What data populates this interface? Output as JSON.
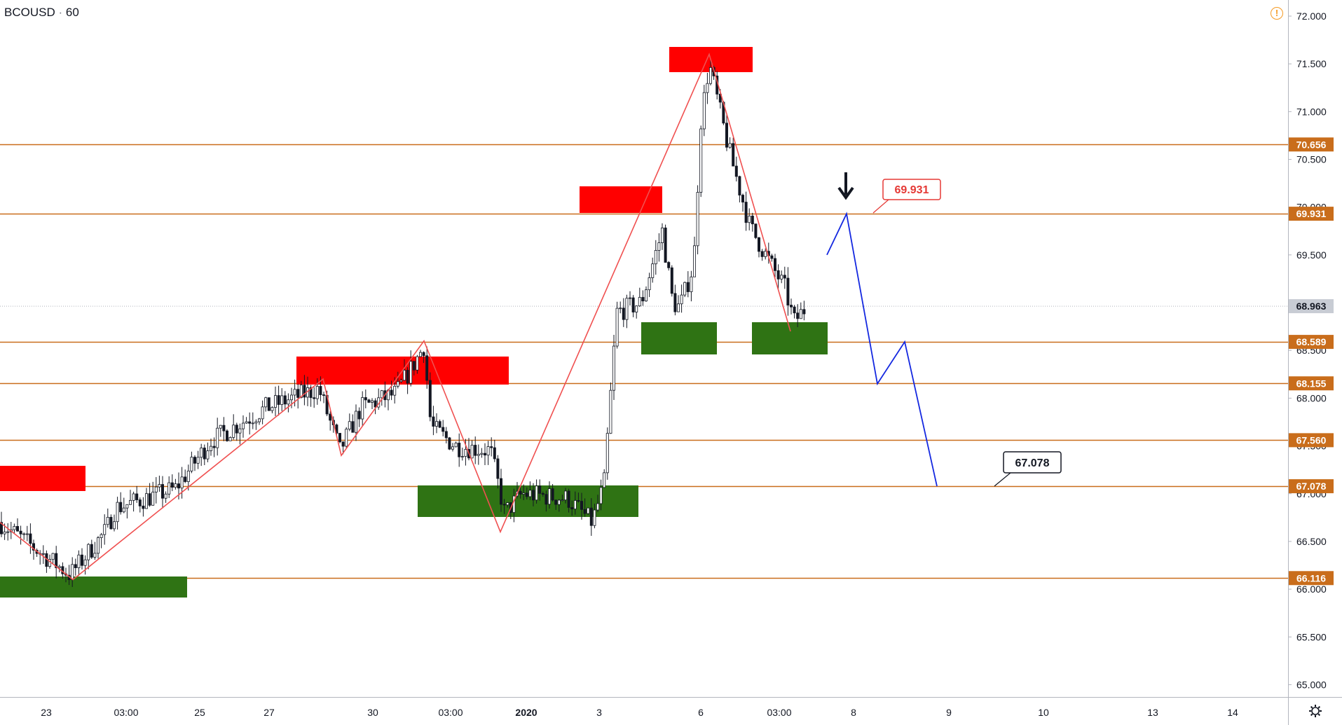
{
  "header": {
    "symbol": "BCOUSD",
    "separator": "·",
    "interval": "60",
    "alert_icon": "exclamation-circle-icon"
  },
  "colors": {
    "level_line": "#c96d1b",
    "level_label_bg": "#c96d1b",
    "supply_zone": "#ff0000",
    "demand_zone": "#2f7314",
    "candle_up": "#ffffff",
    "candle_down": "#131722",
    "wave_line": "#f05050",
    "projection_line": "#1428e0",
    "target_callout_red": "#e53935",
    "target_callout_black": "#131722",
    "price_tag_bg": "#c8ccd4"
  },
  "chart_data": {
    "type": "candlestick",
    "symbol": "BCOUSD",
    "interval": "60",
    "y_axis": {
      "range": [
        64.9,
        72.1
      ],
      "ticks": [
        "72.000",
        "71.500",
        "71.000",
        "70.500",
        "70.000",
        "69.500",
        "69.000",
        "68.500",
        "68.000",
        "67.500",
        "67.000",
        "66.500",
        "66.000",
        "65.500",
        "65.000"
      ]
    },
    "x_axis_ticks": [
      "23",
      "03:00",
      "25",
      "27",
      "30",
      "03:00",
      "2020",
      "3",
      "6",
      "03:00",
      "8",
      "9",
      "10",
      "13",
      "14"
    ],
    "last_price": "68.963",
    "horizontal_levels": [
      {
        "price": 70.656,
        "label": "70.656"
      },
      {
        "price": 69.931,
        "label": "69.931"
      },
      {
        "price": 68.589,
        "label": "68.589"
      },
      {
        "price": 68.155,
        "label": "68.155"
      },
      {
        "price": 67.56,
        "label": "67.560"
      },
      {
        "price": 67.078,
        "label": "67.078"
      },
      {
        "price": 66.116,
        "label": "66.116"
      }
    ],
    "wave_path_prices": [
      66.7,
      66.1,
      68.2,
      67.4,
      68.6,
      66.6,
      71.6,
      68.7
    ],
    "projection_path_prices": [
      69.5,
      69.93,
      68.15,
      68.59,
      67.078
    ],
    "callouts": [
      {
        "label": "69.931",
        "style": "red",
        "price": 69.931
      },
      {
        "label": "67.078",
        "style": "black",
        "price": 67.078
      }
    ],
    "annotation": "down-arrow-icon"
  }
}
